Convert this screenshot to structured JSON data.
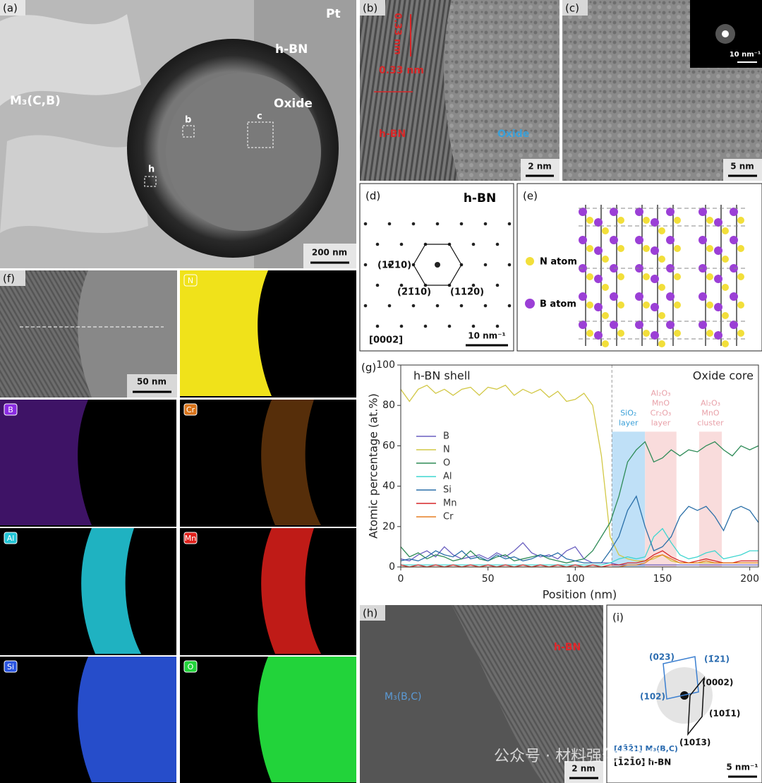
{
  "panels": {
    "a": {
      "label": "(a)",
      "pt": "Pt",
      "shell": "h-BN",
      "matrix": "M₃(C,B)",
      "core": "Oxide",
      "box_b": "b",
      "box_c": "c",
      "box_h": "h",
      "scale": "200 nm"
    },
    "b": {
      "label": "(b)",
      "spacing_rotated": "0.33 nm",
      "spacing": "0.33 nm",
      "shell": "h-BN",
      "core": "Oxide",
      "scale": "2 nm"
    },
    "c": {
      "label": "(c)",
      "inset_scale": "10 nm⁻¹",
      "scale": "5 nm"
    },
    "d": {
      "label": "(d)",
      "title": "h-BN",
      "spot_1": "(12̄10)",
      "spot_2": "(2̄1̄10)",
      "spot_3": "(112̄0)",
      "zone": "[0002]",
      "scale": "10 nm⁻¹"
    },
    "e": {
      "label": "(e)",
      "n_atom": "N atom",
      "b_atom": "B atom"
    },
    "f": {
      "label": "(f)",
      "scale": "50 nm",
      "maps": [
        "N",
        "B",
        "Cr",
        "Al",
        "Mn",
        "Si",
        "O"
      ]
    },
    "h": {
      "label": "(h)",
      "shell": "h-BN",
      "matrix": "M₃(B,C)",
      "scale": "2 nm"
    },
    "i": {
      "label": "(i)",
      "s_023": "(023)",
      "s_121": "(1̄21)",
      "s_0002": "(0002)",
      "s_102": "(102)",
      "s_1011": "(101̄1)",
      "s_1013": "(101̄3)",
      "zone_m": "[43̄2̄1] M₃(B,C)",
      "zone_bn": "[1̄21̄0] h-BN",
      "scale": "5 nm⁻¹"
    },
    "watermark": "公众号 · 材料强化与防护"
  },
  "chart_data": {
    "type": "line",
    "label": "(g)",
    "region_left": "h-BN shell",
    "region_right": "Oxide core",
    "xlabel": "Position (nm)",
    "ylabel": "Atomic percentage (at.%)",
    "xlim": [
      0,
      205
    ],
    "ylim": [
      0,
      100
    ],
    "xticks": [
      0,
      50,
      100,
      150,
      200
    ],
    "yticks": [
      0,
      20,
      40,
      60,
      80,
      100
    ],
    "divider_x": 121,
    "bands": [
      {
        "range": [
          121,
          140
        ],
        "color": "#bfe0f7",
        "label": [
          "SiO₂",
          "layer"
        ],
        "label_color": "#3aa0d8"
      },
      {
        "range": [
          140,
          158
        ],
        "color": "#f9dcdc",
        "label": [
          "Al₂O₃",
          "MnO",
          "Cr₂O₃",
          "layer"
        ],
        "label_color": "#e8a0a8"
      },
      {
        "range": [
          171,
          184
        ],
        "color": "#f9dcdc",
        "label": [
          "Al₂O₃",
          "MnO",
          "cluster"
        ],
        "label_color": "#e8a0a8"
      }
    ],
    "x": [
      0,
      5,
      10,
      15,
      20,
      25,
      30,
      35,
      40,
      45,
      50,
      55,
      60,
      65,
      70,
      75,
      80,
      85,
      90,
      95,
      100,
      105,
      110,
      115,
      120,
      125,
      130,
      135,
      140,
      145,
      150,
      155,
      160,
      165,
      170,
      175,
      180,
      185,
      190,
      195,
      200,
      205
    ],
    "series": [
      {
        "name": "B",
        "color": "#6a5fc0",
        "values": [
          4,
          3,
          6,
          8,
          5,
          10,
          6,
          4,
          5,
          6,
          4,
          7,
          5,
          8,
          12,
          7,
          5,
          6,
          4,
          8,
          10,
          4,
          2,
          2,
          2,
          1,
          1,
          1,
          1,
          1,
          1,
          1,
          1,
          1,
          1,
          1,
          1,
          1,
          1,
          1,
          1,
          1
        ]
      },
      {
        "name": "N",
        "color": "#d2c846",
        "values": [
          88,
          82,
          88,
          90,
          86,
          88,
          85,
          88,
          89,
          85,
          89,
          88,
          90,
          85,
          88,
          86,
          88,
          84,
          87,
          82,
          83,
          86,
          80,
          55,
          15,
          6,
          4,
          3,
          3,
          4,
          6,
          3,
          2,
          2,
          2,
          2,
          2,
          2,
          2,
          2,
          2,
          2
        ]
      },
      {
        "name": "O",
        "color": "#2e8b57",
        "values": [
          10,
          5,
          7,
          4,
          6,
          5,
          3,
          4,
          8,
          4,
          3,
          5,
          6,
          3,
          4,
          5,
          6,
          4,
          3,
          2,
          3,
          4,
          8,
          15,
          22,
          35,
          52,
          58,
          62,
          52,
          54,
          58,
          55,
          58,
          57,
          60,
          62,
          58,
          55,
          60,
          58,
          60
        ]
      },
      {
        "name": "Al",
        "color": "#3fd6d0",
        "values": [
          1,
          1,
          1,
          1,
          1,
          1,
          1,
          1,
          1,
          1,
          1,
          1,
          1,
          1,
          1,
          1,
          1,
          1,
          1,
          1,
          1,
          1,
          1,
          1,
          2,
          4,
          5,
          4,
          5,
          15,
          19,
          12,
          6,
          4,
          5,
          7,
          8,
          4,
          5,
          6,
          8,
          8
        ]
      },
      {
        "name": "Si",
        "color": "#2a6fa8",
        "values": [
          3,
          4,
          3,
          5,
          8,
          6,
          5,
          8,
          4,
          5,
          3,
          6,
          4,
          5,
          3,
          4,
          6,
          5,
          7,
          4,
          3,
          2,
          2,
          2,
          8,
          15,
          28,
          35,
          20,
          8,
          10,
          15,
          25,
          30,
          28,
          30,
          25,
          18,
          28,
          30,
          28,
          22
        ]
      },
      {
        "name": "Mn",
        "color": "#d62728",
        "values": [
          1,
          0,
          1,
          0,
          1,
          0,
          1,
          0,
          1,
          0,
          1,
          0,
          1,
          0,
          1,
          0,
          1,
          0,
          1,
          0,
          1,
          0,
          1,
          0,
          1,
          1,
          2,
          2,
          3,
          6,
          8,
          5,
          3,
          2,
          3,
          4,
          3,
          2,
          2,
          3,
          3,
          3
        ]
      },
      {
        "name": "Cr",
        "color": "#e67e22",
        "values": [
          0,
          0,
          0,
          0,
          0,
          0,
          0,
          0,
          0,
          0,
          0,
          0,
          0,
          0,
          0,
          0,
          0,
          0,
          0,
          0,
          0,
          0,
          0,
          0,
          0,
          0,
          1,
          1,
          2,
          5,
          6,
          4,
          2,
          2,
          2,
          3,
          2,
          2,
          2,
          2,
          2,
          2
        ]
      }
    ]
  }
}
